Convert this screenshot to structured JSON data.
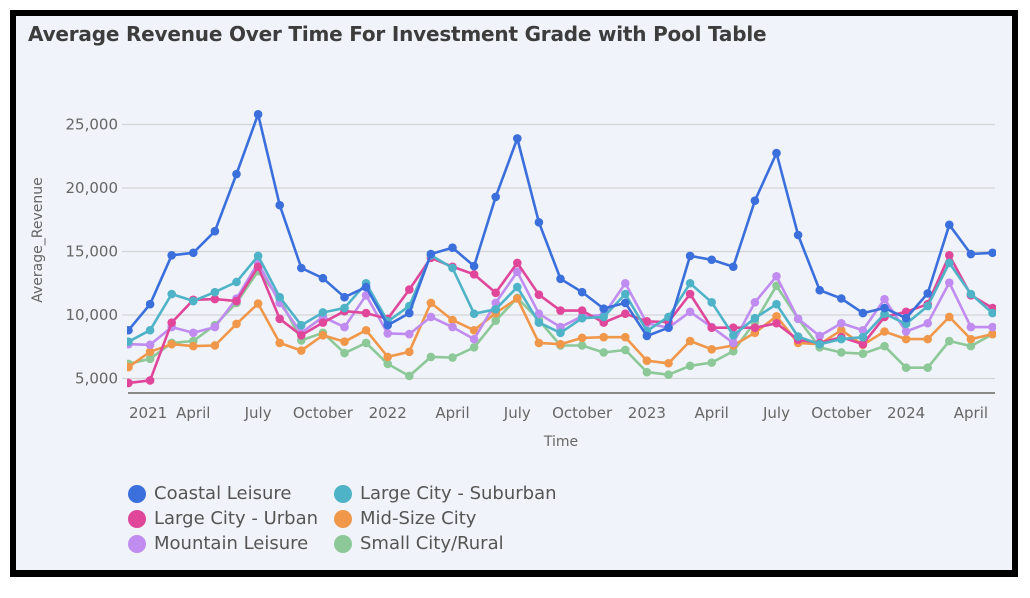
{
  "chart_data": {
    "type": "line",
    "title": "Average Revenue Over Time For Investment Grade with Pool Table",
    "xlabel": "Time",
    "ylabel": "Average_Revenue",
    "ylim": [
      3500,
      27500
    ],
    "y_ticks": [
      5000,
      10000,
      15000,
      20000,
      25000
    ],
    "y_tick_labels": [
      "5,000",
      "10,000",
      "15,000",
      "20,000",
      "25,000"
    ],
    "grid": true,
    "legend_position": "bottom-left",
    "x": [
      "2021-01",
      "2021-02",
      "2021-03",
      "2021-04",
      "2021-05",
      "2021-06",
      "2021-07",
      "2021-08",
      "2021-09",
      "2021-10",
      "2021-11",
      "2021-12",
      "2022-01",
      "2022-02",
      "2022-03",
      "2022-04",
      "2022-05",
      "2022-06",
      "2022-07",
      "2022-08",
      "2022-09",
      "2022-10",
      "2022-11",
      "2022-12",
      "2023-01",
      "2023-02",
      "2023-03",
      "2023-04",
      "2023-05",
      "2023-06",
      "2023-07",
      "2023-08",
      "2023-09",
      "2023-10",
      "2023-11",
      "2023-12",
      "2024-01",
      "2024-02",
      "2024-03",
      "2024-04",
      "2024-05"
    ],
    "x_ticks": [
      {
        "index": 0,
        "label": "2021"
      },
      {
        "index": 3,
        "label": "April"
      },
      {
        "index": 6,
        "label": "July"
      },
      {
        "index": 9,
        "label": "October"
      },
      {
        "index": 12,
        "label": "2022"
      },
      {
        "index": 15,
        "label": "April"
      },
      {
        "index": 18,
        "label": "July"
      },
      {
        "index": 21,
        "label": "October"
      },
      {
        "index": 24,
        "label": "2023"
      },
      {
        "index": 27,
        "label": "April"
      },
      {
        "index": 30,
        "label": "July"
      },
      {
        "index": 33,
        "label": "October"
      },
      {
        "index": 36,
        "label": "2024"
      },
      {
        "index": 39,
        "label": "April"
      }
    ],
    "series": [
      {
        "name": "Coastal Leisure",
        "color": "#3a6fdc",
        "values": [
          8800,
          10850,
          14700,
          14900,
          16600,
          21100,
          25800,
          18650,
          13700,
          12900,
          11400,
          12200,
          9200,
          10150,
          14800,
          15300,
          13850,
          19300,
          23900,
          17300,
          12850,
          11800,
          10500,
          10950,
          8350,
          9000,
          14650,
          14350,
          13800,
          19000,
          22750,
          16300,
          11950,
          11300,
          10150,
          10550,
          9750,
          11700,
          17100,
          14800,
          14900
        ]
      },
      {
        "name": "Large City - Suburban",
        "color": "#4fb3c8",
        "values": [
          7900,
          8800,
          11650,
          11100,
          11800,
          12600,
          14650,
          11400,
          9200,
          10200,
          10550,
          12500,
          9500,
          10700,
          14700,
          13700,
          10100,
          10450,
          12200,
          9400,
          8600,
          9750,
          9850,
          11650,
          8750,
          9850,
          12500,
          11000,
          8400,
          9750,
          10850,
          8300,
          7700,
          8100,
          8250,
          10100,
          9300,
          10700,
          14100,
          11650,
          10150
        ]
      },
      {
        "name": "Large City - Urban",
        "color": "#e0479a",
        "values": [
          4650,
          4850,
          9400,
          11200,
          11250,
          11100,
          13800,
          9700,
          8400,
          9400,
          10300,
          10150,
          9700,
          12000,
          14500,
          13800,
          13200,
          11750,
          14100,
          11600,
          10350,
          10350,
          9400,
          10100,
          9500,
          9450,
          11650,
          9000,
          9000,
          9000,
          9350,
          8050,
          7800,
          8250,
          7700,
          9850,
          10250,
          10850,
          14700,
          11550,
          10550
        ]
      },
      {
        "name": "Mid-Size City",
        "color": "#f0974a",
        "values": [
          5900,
          7100,
          7700,
          7550,
          7600,
          9300,
          10900,
          7800,
          7200,
          8400,
          7900,
          8800,
          6700,
          7100,
          10950,
          9600,
          8800,
          10150,
          11300,
          7800,
          7700,
          8200,
          8250,
          8250,
          6400,
          6200,
          7950,
          7300,
          7600,
          8600,
          9900,
          7800,
          7700,
          8800,
          7650,
          8700,
          8100,
          8100,
          9850,
          8100,
          8500
        ]
      },
      {
        "name": "Mountain Leisure",
        "color": "#c08cf0",
        "values": [
          7700,
          7650,
          9050,
          8600,
          9050,
          11300,
          14100,
          10950,
          8600,
          9850,
          9050,
          11550,
          8550,
          8500,
          9850,
          9050,
          8100,
          10950,
          13400,
          10100,
          9050,
          9900,
          10000,
          12500,
          9350,
          9000,
          10250,
          9050,
          7800,
          11000,
          13050,
          9700,
          8350,
          9350,
          8800,
          11250,
          8700,
          9350,
          12550,
          9050,
          9050
        ]
      },
      {
        "name": "Small City/Rural",
        "color": "#8dc898",
        "values": [
          6150,
          6550,
          7800,
          7950,
          9200,
          10950,
          13450,
          11300,
          8000,
          8600,
          7000,
          7800,
          6150,
          5200,
          6700,
          6650,
          7450,
          9550,
          11350,
          9600,
          7600,
          7600,
          7050,
          7250,
          5500,
          5300,
          6000,
          6250,
          7150,
          9450,
          12300,
          9700,
          7450,
          7050,
          6950,
          7550,
          5850,
          5850,
          7950,
          7550,
          8500
        ]
      }
    ],
    "draw_order": [
      "Small City/Rural",
      "Mid-Size City",
      "Mountain Leisure",
      "Large City - Urban",
      "Large City - Suburban",
      "Coastal Leisure"
    ]
  },
  "legend": {
    "items": [
      {
        "label": "Coastal Leisure",
        "color": "#3a6fdc"
      },
      {
        "label": "Large City - Suburban",
        "color": "#4fb3c8"
      },
      {
        "label": "Large City - Urban",
        "color": "#e0479a"
      },
      {
        "label": "Mid-Size City",
        "color": "#f0974a"
      },
      {
        "label": "Mountain Leisure",
        "color": "#c08cf0"
      },
      {
        "label": "Small City/Rural",
        "color": "#8dc898"
      }
    ]
  }
}
